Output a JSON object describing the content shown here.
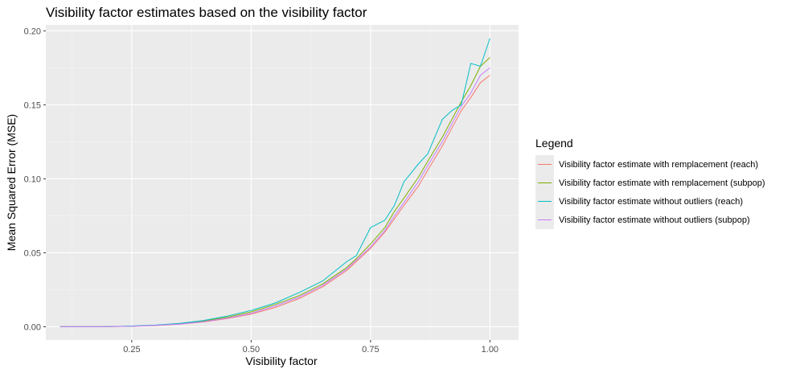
{
  "chart_data": {
    "type": "line",
    "title": "Visibility factor estimates based on the visibility factor",
    "xlabel": "Visibility factor",
    "ylabel": "Mean Squared Error (MSE)",
    "xlim": [
      0.07,
      1.06
    ],
    "ylim": [
      -0.009,
      0.204
    ],
    "x_ticks": [
      0.25,
      0.5,
      0.75,
      1.0
    ],
    "x_tick_labels": [
      "0.25",
      "0.50",
      "0.75",
      "1.00"
    ],
    "y_ticks": [
      0.0,
      0.05,
      0.1,
      0.15,
      0.2
    ],
    "y_tick_labels": [
      "0.00",
      "0.05",
      "0.10",
      "0.15",
      "0.20"
    ],
    "grid": true,
    "legend_position": "right",
    "legend_title": "Legend",
    "x": [
      0.1,
      0.15,
      0.2,
      0.25,
      0.3,
      0.35,
      0.4,
      0.45,
      0.5,
      0.55,
      0.6,
      0.65,
      0.7,
      0.72,
      0.75,
      0.78,
      0.8,
      0.82,
      0.85,
      0.87,
      0.9,
      0.92,
      0.94,
      0.96,
      0.98,
      1.0
    ],
    "series": [
      {
        "name": "Visibility factor estimate with remplacement (reach)",
        "color": "#F8766D",
        "values": [
          0.0,
          0.0,
          0.0001,
          0.0003,
          0.0008,
          0.0017,
          0.0032,
          0.0055,
          0.0085,
          0.013,
          0.019,
          0.027,
          0.038,
          0.044,
          0.053,
          0.064,
          0.073,
          0.082,
          0.095,
          0.106,
          0.122,
          0.134,
          0.146,
          0.155,
          0.165,
          0.17
        ]
      },
      {
        "name": "Visibility factor estimate with remplacement (subpop)",
        "color": "#7CAE00",
        "values": [
          0.0,
          0.0,
          0.0001,
          0.0004,
          0.001,
          0.002,
          0.0038,
          0.0065,
          0.01,
          0.015,
          0.021,
          0.029,
          0.04,
          0.046,
          0.056,
          0.067,
          0.078,
          0.087,
          0.101,
          0.112,
          0.128,
          0.14,
          0.152,
          0.163,
          0.176,
          0.182
        ]
      },
      {
        "name": "Visibility factor estimate without outliers (reach)",
        "color": "#00BFC4",
        "values": [
          0.0,
          0.0,
          0.0001,
          0.0005,
          0.0011,
          0.0023,
          0.0042,
          0.0072,
          0.011,
          0.016,
          0.023,
          0.031,
          0.044,
          0.048,
          0.067,
          0.072,
          0.082,
          0.098,
          0.11,
          0.117,
          0.14,
          0.146,
          0.15,
          0.178,
          0.176,
          0.195
        ]
      },
      {
        "name": "Visibility factor estimate without outliers (subpop)",
        "color": "#C77CFF",
        "values": [
          0.0,
          0.0,
          0.0001,
          0.0003,
          0.0009,
          0.0018,
          0.0034,
          0.0058,
          0.009,
          0.014,
          0.02,
          0.028,
          0.039,
          0.045,
          0.054,
          0.065,
          0.075,
          0.084,
          0.098,
          0.109,
          0.125,
          0.137,
          0.149,
          0.158,
          0.17,
          0.175
        ]
      }
    ]
  }
}
